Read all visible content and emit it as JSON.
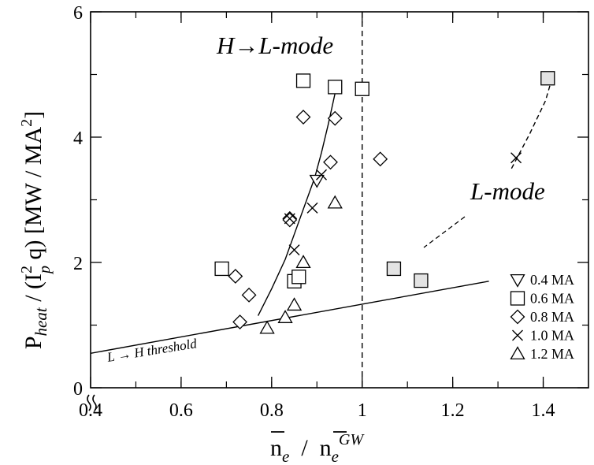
{
  "chart_data": {
    "type": "scatter",
    "x_range": [
      0.4,
      1.5
    ],
    "y_range": [
      0,
      6
    ],
    "x_ticks": [
      "0.4",
      "0.6",
      "0.8",
      "1",
      "1.2",
      "1.4"
    ],
    "y_ticks": [
      "0",
      "2",
      "4",
      "6"
    ],
    "ylabel": {
      "p": "P",
      "heat": "heat",
      "mid": " / (I",
      "sup2": "2",
      "subp": "p",
      "tail": " q) [MW / MA",
      "sup2b": "2",
      "end": "]"
    },
    "xlabel": {
      "n1": "n",
      "e1": "e",
      "slash": "  /  ",
      "n2": "n",
      "e2": "e",
      "gw": "GW"
    },
    "annotations": {
      "hl": "H→L-mode",
      "lmode": "L-mode",
      "threshold": "L → H threshold"
    },
    "legend": {
      "placement": "bottom-right",
      "entries": [
        {
          "marker": "triangle-down",
          "label": "0.4 MA"
        },
        {
          "marker": "square",
          "label": "0.6 MA"
        },
        {
          "marker": "diamond",
          "label": "0.8 MA"
        },
        {
          "marker": "x",
          "label": "1.0 MA"
        },
        {
          "marker": "triangle-up",
          "label": "1.2 MA"
        }
      ]
    },
    "series": [
      {
        "name": "0.4 MA",
        "marker": "triangle-down",
        "points": [
          [
            0.9,
            3.31
          ]
        ]
      },
      {
        "name": "0.6 MA",
        "marker": "square",
        "points": [
          [
            0.69,
            1.9
          ],
          [
            0.85,
            1.7
          ],
          [
            0.86,
            1.77
          ],
          [
            0.87,
            4.9
          ],
          [
            0.94,
            4.8
          ],
          [
            1.0,
            4.77
          ]
        ]
      },
      {
        "name": "0.6 MA L-mode",
        "marker": "square-filled",
        "points": [
          [
            1.07,
            1.9
          ],
          [
            1.13,
            1.71
          ],
          [
            1.41,
            4.94
          ]
        ]
      },
      {
        "name": "0.8 MA",
        "marker": "diamond",
        "points": [
          [
            0.72,
            1.78
          ],
          [
            0.73,
            1.05
          ],
          [
            0.75,
            1.48
          ],
          [
            0.84,
            2.7
          ],
          [
            0.84,
            2.68
          ],
          [
            0.87,
            4.32
          ],
          [
            0.93,
            3.6
          ],
          [
            0.94,
            4.3
          ],
          [
            1.04,
            3.65
          ]
        ]
      },
      {
        "name": "1.0 MA",
        "marker": "x",
        "points": [
          [
            0.84,
            2.7
          ],
          [
            0.85,
            2.2
          ],
          [
            0.89,
            2.87
          ],
          [
            0.91,
            3.4
          ],
          [
            1.34,
            3.67
          ]
        ]
      },
      {
        "name": "1.2 MA",
        "marker": "triangle-up",
        "points": [
          [
            0.79,
            0.95
          ],
          [
            0.83,
            1.12
          ],
          [
            0.85,
            1.32
          ],
          [
            0.87,
            2.0
          ],
          [
            0.94,
            2.95
          ]
        ]
      }
    ],
    "hl_curve": [
      [
        0.77,
        1.15
      ],
      [
        0.8,
        1.58
      ],
      [
        0.83,
        2.05
      ],
      [
        0.855,
        2.55
      ],
      [
        0.875,
        2.95
      ],
      [
        0.895,
        3.35
      ],
      [
        0.91,
        3.75
      ],
      [
        0.925,
        4.2
      ],
      [
        0.94,
        4.7
      ]
    ],
    "lmode_curve": [
      [
        1.33,
        3.5
      ],
      [
        1.37,
        4.05
      ],
      [
        1.405,
        4.58
      ],
      [
        1.42,
        4.95
      ]
    ],
    "threshold_line": [
      [
        0.4,
        0.55
      ],
      [
        1.28,
        1.7
      ]
    ],
    "density_limit_x": 1.0
  }
}
